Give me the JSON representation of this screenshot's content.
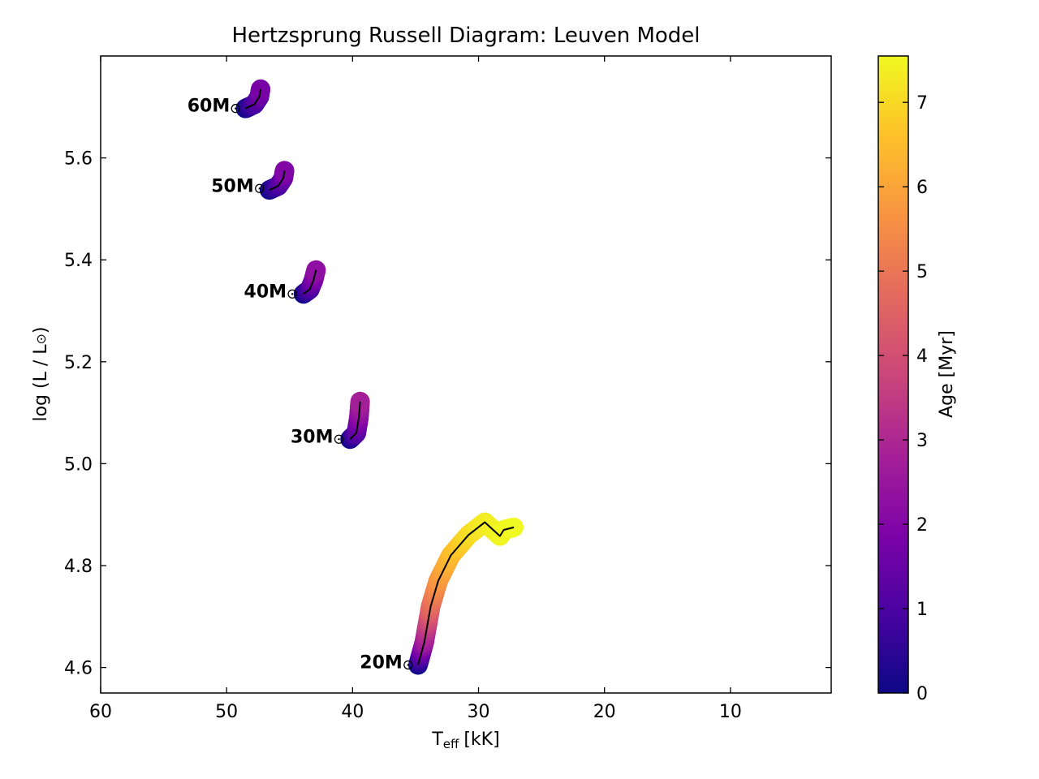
{
  "chart_data": {
    "type": "line",
    "title": "Hertzsprung Russell Diagram: Leuven Model",
    "xlabel_main": "T",
    "xlabel_sub": "eff",
    "xlabel_unit": "[kK]",
    "ylabel_main": "log (L / L",
    "ylabel_close": ")",
    "sun_symbol": "⊙",
    "xlim": [
      60,
      2
    ],
    "ylim": [
      4.55,
      5.8
    ],
    "x_ticks": [
      60,
      50,
      40,
      30,
      20,
      10
    ],
    "y_ticks": [
      4.6,
      4.8,
      5.0,
      5.2,
      5.4,
      5.6
    ],
    "y_tick_labels": [
      "4.6",
      "4.8",
      "5.0",
      "5.2",
      "5.4",
      "5.6"
    ],
    "colorbar": {
      "label": "Age [Myr]",
      "range": [
        0,
        7.55
      ],
      "ticks": [
        0,
        1,
        2,
        3,
        4,
        5,
        6,
        7
      ],
      "colormap": "plasma"
    },
    "series": [
      {
        "name": "60M",
        "label_x": 48.9,
        "label_y": 5.697,
        "x": [
          48.5,
          47.8,
          47.4,
          47.3
        ],
        "y": [
          5.697,
          5.705,
          5.72,
          5.735
        ],
        "age": [
          0.0,
          0.8,
          1.4,
          1.8
        ]
      },
      {
        "name": "50M",
        "label_x": 47.0,
        "label_y": 5.54,
        "x": [
          46.6,
          45.9,
          45.5,
          45.4
        ],
        "y": [
          5.537,
          5.545,
          5.56,
          5.575
        ],
        "age": [
          0.0,
          0.8,
          1.4,
          2.0
        ]
      },
      {
        "name": "40M",
        "label_x": 44.4,
        "label_y": 5.333,
        "x": [
          43.9,
          43.4,
          43.1,
          42.9
        ],
        "y": [
          5.333,
          5.342,
          5.36,
          5.38
        ],
        "age": [
          0.0,
          0.8,
          1.6,
          2.3
        ]
      },
      {
        "name": "30M",
        "label_x": 40.7,
        "label_y": 5.048,
        "x": [
          40.2,
          39.7,
          39.5,
          39.4
        ],
        "y": [
          5.048,
          5.06,
          5.09,
          5.122
        ],
        "age": [
          0.0,
          1.0,
          2.0,
          2.8
        ]
      },
      {
        "name": "20M",
        "label_x": 35.2,
        "label_y": 4.605,
        "x": [
          34.8,
          34.3,
          33.8,
          33.2,
          32.2,
          30.8,
          29.5,
          28.3,
          28.0,
          27.2
        ],
        "y": [
          4.605,
          4.65,
          4.72,
          4.77,
          4.82,
          4.86,
          4.885,
          4.858,
          4.87,
          4.875
        ],
        "age": [
          0.0,
          2.5,
          4.6,
          5.6,
          6.4,
          7.0,
          7.3,
          7.45,
          7.5,
          7.55
        ]
      }
    ]
  }
}
